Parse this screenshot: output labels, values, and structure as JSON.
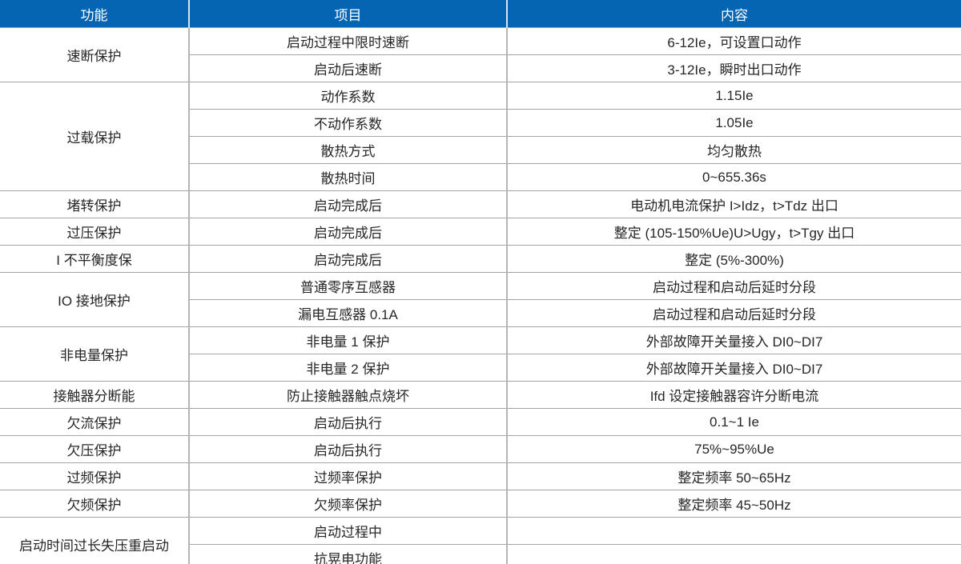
{
  "colors": {
    "header_bg": "#0665b2",
    "header_text": "#ffffff",
    "row_border": "#a3a3a3",
    "column_border": "#b4b4b4",
    "bottom_rule": "#1568b1",
    "body_text": "#262626"
  },
  "table": {
    "headers": [
      "功能",
      "项目",
      "内容"
    ],
    "groups": [
      {
        "function": "速断保护",
        "rows": [
          {
            "item": "启动过程中限时速断",
            "content": "6-12Ie，可设置口动作"
          },
          {
            "item": "启动后速断",
            "content": "3-12Ie，瞬时出口动作"
          }
        ]
      },
      {
        "function": "过载保护",
        "rows": [
          {
            "item": "动作系数",
            "content": "1.15Ie"
          },
          {
            "item": "不动作系数",
            "content": "1.05Ie"
          },
          {
            "item": "散热方式",
            "content": "均匀散热"
          },
          {
            "item": "散热时间",
            "content": "0~655.36s"
          }
        ]
      },
      {
        "function": "堵转保护",
        "rows": [
          {
            "item": "启动完成后",
            "content": "电动机电流保护 I>Idz，t>Tdz 出口"
          }
        ]
      },
      {
        "function": "过压保护",
        "rows": [
          {
            "item": "启动完成后",
            "content": "整定 (105-150%Ue)U>Ugy，t>Tgy 出口"
          }
        ]
      },
      {
        "function": "I 不平衡度保",
        "rows": [
          {
            "item": "启动完成后",
            "content": "整定 (5%-300%)"
          }
        ]
      },
      {
        "function": "IO 接地保护",
        "rows": [
          {
            "item": "普通零序互感器",
            "content": "启动过程和启动后延时分段"
          },
          {
            "item": "漏电互感器 0.1A",
            "content": "启动过程和启动后延时分段"
          }
        ]
      },
      {
        "function": "非电量保护",
        "rows": [
          {
            "item": "非电量 1 保护",
            "content": "外部故障开关量接入 DI0~DI7"
          },
          {
            "item": "非电量 2 保护",
            "content": "外部故障开关量接入 DI0~DI7"
          }
        ]
      },
      {
        "function": "接触器分断能",
        "rows": [
          {
            "item": "防止接触器触点烧坏",
            "content": "Ifd 设定接触器容许分断电流"
          }
        ]
      },
      {
        "function": "欠流保护",
        "rows": [
          {
            "item": "启动后执行",
            "content": "0.1~1 Ie"
          }
        ]
      },
      {
        "function": "欠压保护",
        "rows": [
          {
            "item": "启动后执行",
            "content": "75%~95%Ue"
          }
        ]
      },
      {
        "function": "过频保护",
        "rows": [
          {
            "item": "过频率保护",
            "content": "整定频率 50~65Hz"
          }
        ]
      },
      {
        "function": "欠频保护",
        "rows": [
          {
            "item": "欠频率保护",
            "content": "整定频率 45~50Hz"
          }
        ]
      },
      {
        "function": "启动时间过长失压重启动",
        "rows": [
          {
            "item": "启动过程中",
            "content": ""
          },
          {
            "item": "抗晃电功能",
            "content": ""
          }
        ]
      }
    ]
  }
}
